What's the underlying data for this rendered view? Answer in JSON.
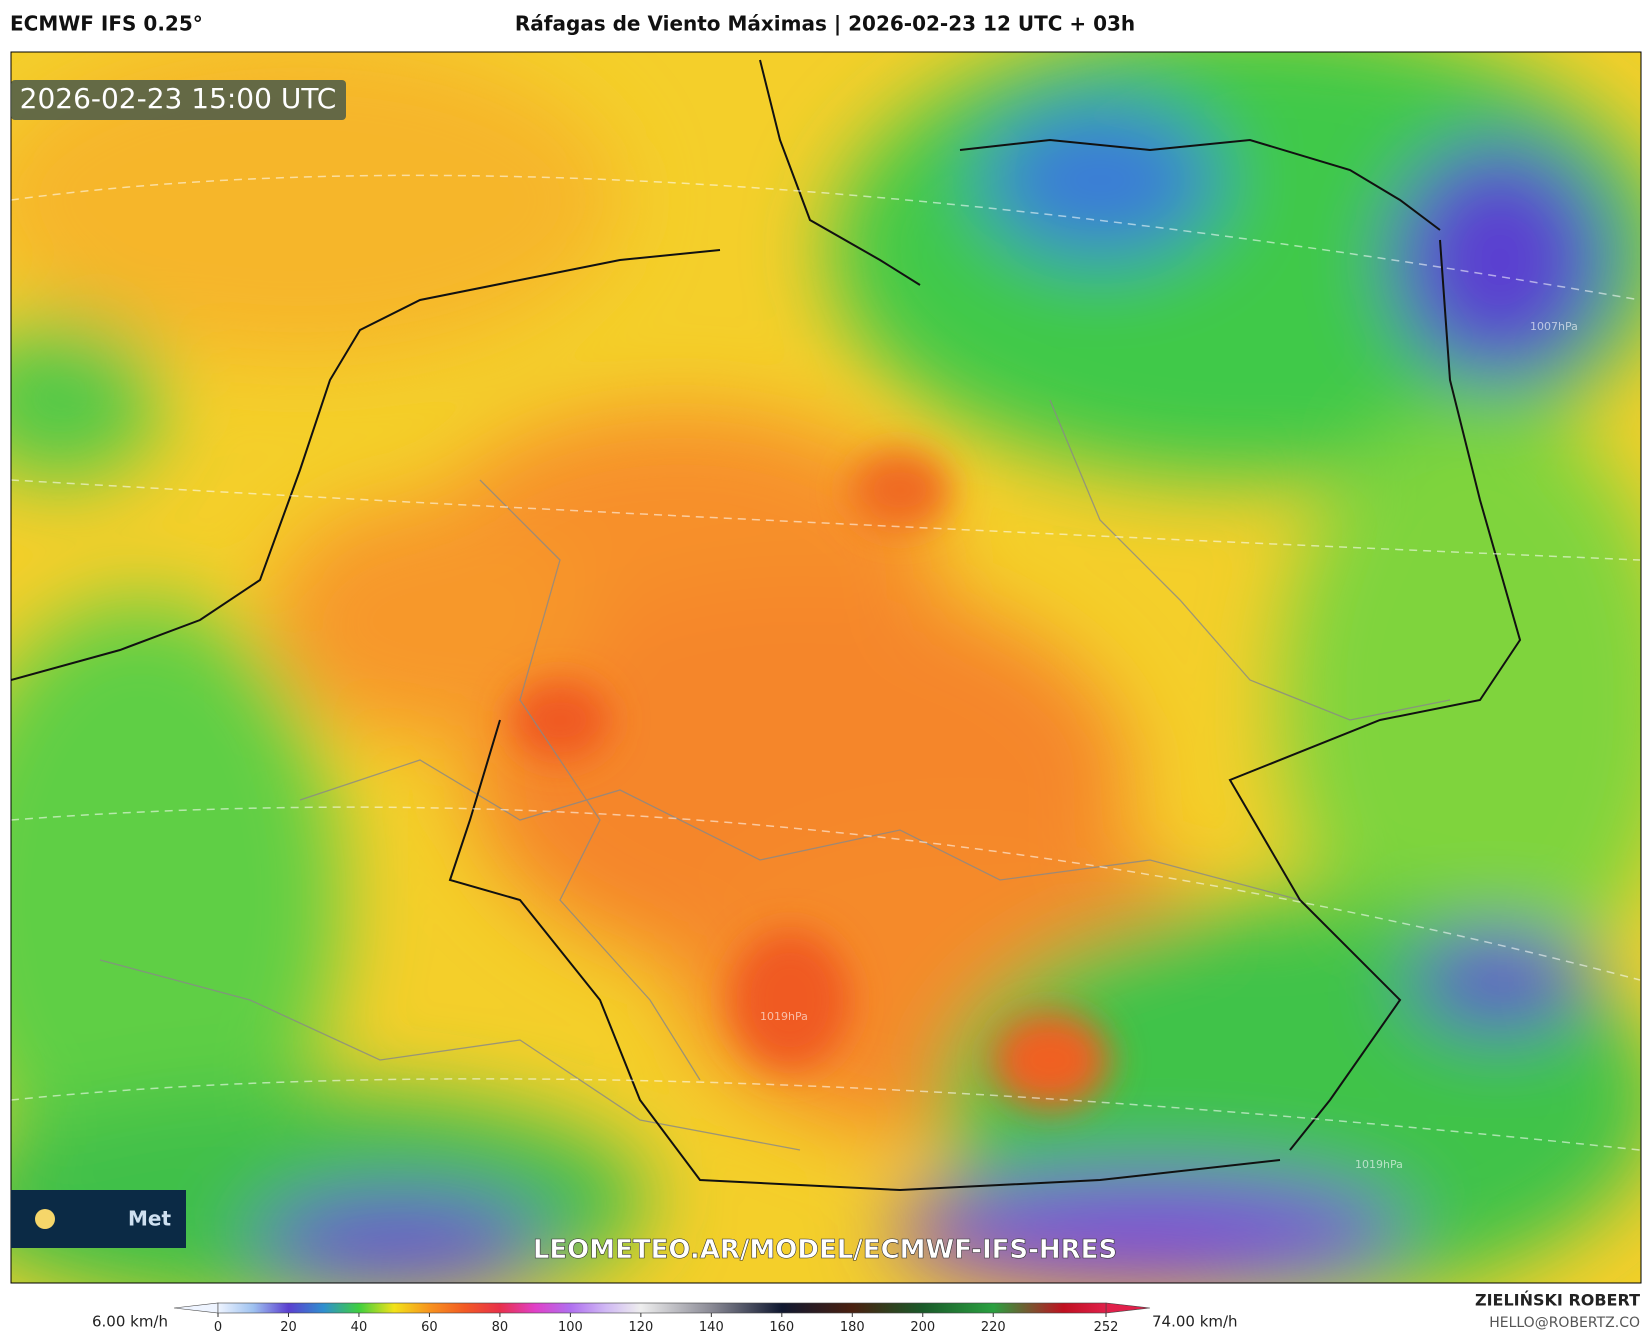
{
  "header": {
    "model": "ECMWF IFS 0.25°",
    "title": "Ráfagas de Viento Máximas | 2026-02-23 12 UTC + 03h"
  },
  "map": {
    "timestamp": "2026-02-23 15:00 UTC",
    "watermark": "LEOMETEO.AR/MODEL/ECMWF-IFS-HRES",
    "logo_text": "Met",
    "isobar_labels": [
      "1007hPa",
      "1019hPa",
      "1019hPa"
    ]
  },
  "colorbar": {
    "min_label": "6.00 km/h",
    "max_label": "74.00 km/h",
    "lim": [
      0,
      252
    ],
    "ticks": [
      0,
      20,
      40,
      60,
      80,
      100,
      120,
      140,
      160,
      180,
      200,
      220,
      252
    ],
    "stops": [
      {
        "value": 0,
        "color": "#eef4ff"
      },
      {
        "value": 10,
        "color": "#9fc2f0"
      },
      {
        "value": 20,
        "color": "#5b3fd0"
      },
      {
        "value": 30,
        "color": "#2f8fcf"
      },
      {
        "value": 40,
        "color": "#3fcf3f"
      },
      {
        "value": 50,
        "color": "#f2e21a"
      },
      {
        "value": 60,
        "color": "#f7931e"
      },
      {
        "value": 70,
        "color": "#f25a24"
      },
      {
        "value": 80,
        "color": "#e8304a"
      },
      {
        "value": 90,
        "color": "#e040c8"
      },
      {
        "value": 100,
        "color": "#b070f0"
      },
      {
        "value": 110,
        "color": "#d0b8f4"
      },
      {
        "value": 120,
        "color": "#eeeeee"
      },
      {
        "value": 140,
        "color": "#8a8a95"
      },
      {
        "value": 160,
        "color": "#101830"
      },
      {
        "value": 180,
        "color": "#4a2010"
      },
      {
        "value": 200,
        "color": "#1a5a2a"
      },
      {
        "value": 220,
        "color": "#2aa040"
      },
      {
        "value": 240,
        "color": "#c01020"
      },
      {
        "value": 252,
        "color": "#e0204a"
      }
    ]
  },
  "footer": {
    "author": "ZIELIŃSKI ROBERT",
    "email": "HELLO@ROBERTZ.CO"
  }
}
